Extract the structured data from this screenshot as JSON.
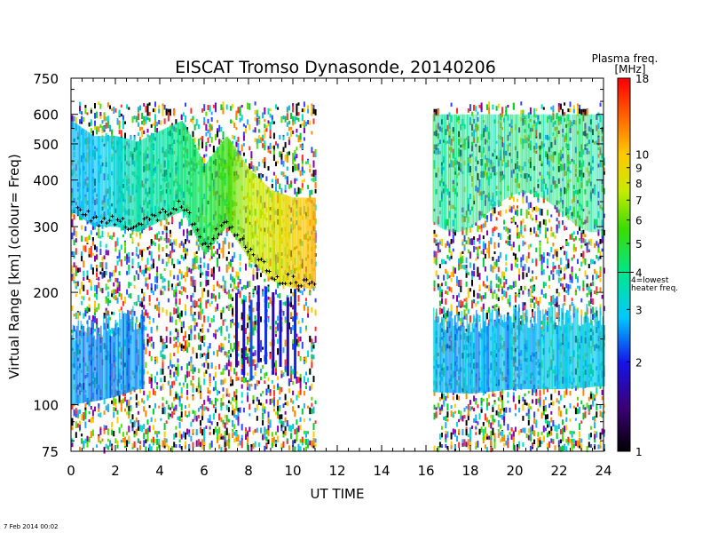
{
  "chart_data": {
    "type": "heatmap",
    "title": "EISCAT Tromso Dynasonde,   20140206",
    "xlabel": "UT TIME",
    "ylabel": "Virtual Range [km]    (colour= Freq)",
    "x_ticks": [
      0,
      2,
      4,
      6,
      8,
      10,
      12,
      14,
      16,
      18,
      20,
      22,
      24
    ],
    "y_ticks": [
      75,
      100,
      200,
      300,
      400,
      500,
      600,
      750
    ],
    "xlim": [
      0,
      24
    ],
    "ylim": [
      75,
      750
    ],
    "y_scale": "log",
    "colorbar": {
      "label_line1": "Plasma freq.",
      "label_line2": "[MHz]",
      "scale": "log",
      "range": [
        1,
        18
      ],
      "ticks": [
        1,
        2,
        3,
        4,
        5,
        6,
        7,
        8,
        9,
        10,
        18
      ],
      "marker_value": 4,
      "marker_label_line1": "4=lowest",
      "marker_label_line2": "heater freq."
    },
    "data_gaps": [
      [
        11,
        16.3
      ]
    ],
    "features": [
      {
        "name": "F-region trace (trough)",
        "x": [
          0,
          1,
          2,
          3,
          4,
          5,
          6,
          7,
          8,
          9,
          10,
          11
        ],
        "y_km": [
          330,
          300,
          300,
          290,
          310,
          330,
          250,
          300,
          245,
          215,
          205,
          205
        ],
        "freq_mhz": [
          3,
          3,
          3.5,
          4,
          4,
          4.5,
          5,
          6,
          8,
          9,
          10,
          12
        ]
      },
      {
        "name": "E-region echoes",
        "x": [
          0,
          1,
          2,
          3,
          16.3,
          18,
          20,
          22,
          24
        ],
        "y_km": [
          100,
          102,
          105,
          110,
          108,
          107,
          110,
          110,
          112
        ],
        "freq_mhz": [
          2.5,
          2.5,
          2.5,
          2.5,
          2.8,
          2.8,
          2.8,
          3,
          3
        ]
      }
    ]
  },
  "footer": {
    "timestamp": "7 Feb 2014 00:02"
  }
}
